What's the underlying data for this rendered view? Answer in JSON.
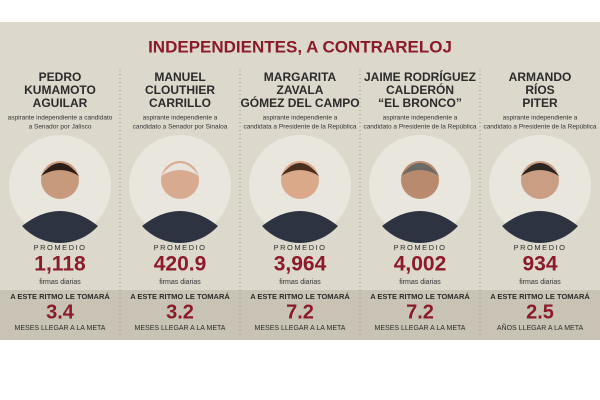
{
  "title": "INDEPENDIENTES, A CONTRARELOJ",
  "candidates": [
    {
      "name": [
        "PEDRO",
        "KUMAMOTO",
        "AGUILAR"
      ],
      "description": [
        "aspirante independiente a candidato",
        "a Senador por Jalisco"
      ],
      "average_label": "PROMEDIO",
      "average": "1,118",
      "average_unit": "firmas diarias",
      "pace_label": "A ESTE RITMO LE TOMARÁ",
      "time": "3.4",
      "time_unit": "MESES LLEGAR A LA META"
    },
    {
      "name": [
        "MANUEL",
        "CLOUTHIER",
        "CARRILLO"
      ],
      "description": [
        "aspirante independiente a",
        "candidato a Senador por Sinaloa"
      ],
      "average_label": "PROMEDIO",
      "average": "420.9",
      "average_unit": "firmas diarias",
      "pace_label": "A ESTE RITMO LE TOMARÁ",
      "time": "3.2",
      "time_unit": "MESES LLEGAR A LA META"
    },
    {
      "name": [
        "MARGARITA",
        "ZAVALA",
        "GÓMEZ DEL CAMPO"
      ],
      "description": [
        "aspirante independiente a",
        "candidata a Presidente de la República"
      ],
      "average_label": "PROMEDIO",
      "average": "3,964",
      "average_unit": "firmas diarias",
      "pace_label": "A ESTE RITMO LE TOMARÁ",
      "time": "7.2",
      "time_unit": "MESES LLEGAR A LA META"
    },
    {
      "name": [
        "JAIME RODRÍGUEZ",
        "CALDERÓN",
        "“EL BRONCO”"
      ],
      "description": [
        "aspirante independiente a",
        "candidato a Presidente de la República"
      ],
      "average_label": "PROMEDIO",
      "average": "4,002",
      "average_unit": "firmas diarias",
      "pace_label": "A ESTE RITMO LE TOMARÁ",
      "time": "7.2",
      "time_unit": "MESES LLEGAR A LA META"
    },
    {
      "name": [
        "ARMANDO",
        "RÍOS",
        "PITER"
      ],
      "description": [
        "aspirante independiente a",
        "candidato a Presidente de la República"
      ],
      "average_label": "PROMEDIO",
      "average": "934",
      "average_unit": "firmas diarias",
      "pace_label": "A ESTE RITMO LE TOMARÁ",
      "time": "2.5",
      "time_unit": "AÑOS LLEGAR A LA META"
    }
  ]
}
